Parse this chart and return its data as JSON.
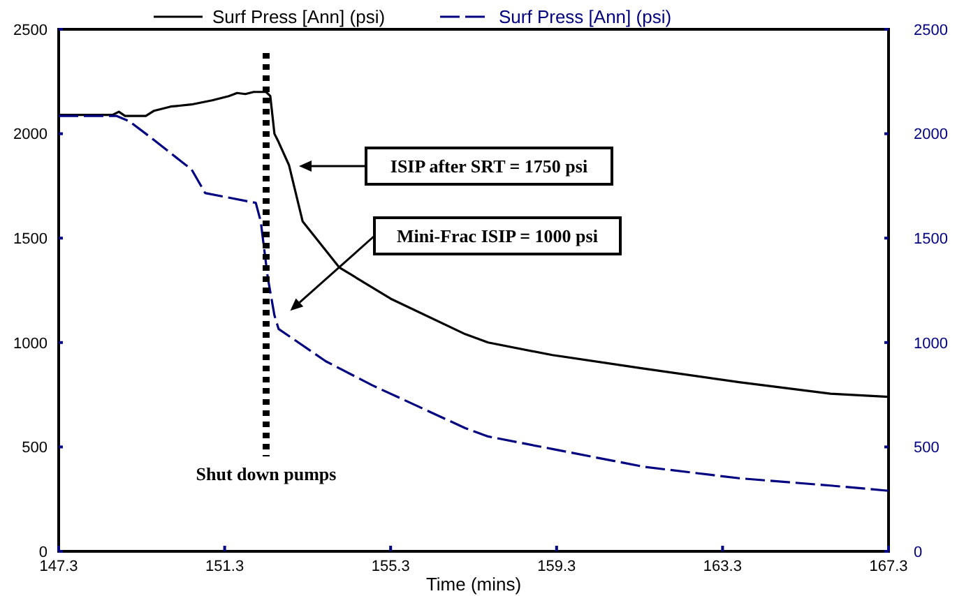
{
  "chart_data": {
    "type": "line",
    "xlabel": "Time (mins)",
    "legend": "top",
    "grid": false,
    "marker": "none",
    "xlim": [
      147.3,
      167.3
    ],
    "xticks": [
      147.3,
      151.3,
      155.3,
      159.3,
      163.3,
      167.3
    ],
    "ylim": [
      0,
      2500
    ],
    "yticks": [
      0,
      500,
      1000,
      1500,
      2000,
      2500
    ],
    "y2lim": [
      0,
      2500
    ],
    "y2ticks": [
      0,
      500,
      1000,
      1500,
      2000,
      2500
    ],
    "series": [
      {
        "name": "Surf Press [Ann] (psi)",
        "color": "#000000",
        "line_style": "solid",
        "x": [
          147.3,
          148.6,
          148.75,
          148.9,
          149.4,
          149.6,
          150.0,
          150.5,
          151.0,
          151.4,
          151.6,
          151.8,
          152.0,
          152.3,
          152.4,
          152.5,
          152.6,
          152.85,
          153.18,
          154.06,
          155.3,
          157.1,
          157.65,
          159.2,
          161.4,
          163.7,
          165.9,
          167.3
        ],
        "values": [
          2090,
          2090,
          2105,
          2085,
          2085,
          2110,
          2130,
          2140,
          2160,
          2180,
          2195,
          2190,
          2200,
          2200,
          2180,
          2000,
          1960,
          1850,
          1580,
          1360,
          1210,
          1040,
          1000,
          940,
          875,
          810,
          755,
          740
        ]
      },
      {
        "name": "Surf Press [Ann] (psi)",
        "color": "#000080",
        "line_style": "dashed",
        "axis": "y2",
        "x": [
          147.3,
          148.7,
          149.0,
          149.5,
          150.3,
          150.5,
          150.83,
          152.05,
          152.17,
          152.34,
          152.5,
          152.6,
          153.74,
          154.86,
          157.1,
          157.65,
          159.2,
          161.4,
          163.7,
          165.9,
          167.3
        ],
        "values": [
          2085,
          2085,
          2060,
          1985,
          1860,
          1830,
          1716,
          1669,
          1580,
          1310,
          1130,
          1065,
          910,
          795,
          590,
          550,
          490,
          405,
          350,
          315,
          290
        ]
      }
    ],
    "ref_lines": [
      {
        "axis": "x",
        "value": 152.3,
        "label": "Shut down pumps",
        "color": "#000000",
        "line_style": "dotted"
      }
    ],
    "annotations": [
      "ISIP after SRT = 1750 psi",
      "Mini-Frac ISIP = 1000 psi"
    ]
  }
}
